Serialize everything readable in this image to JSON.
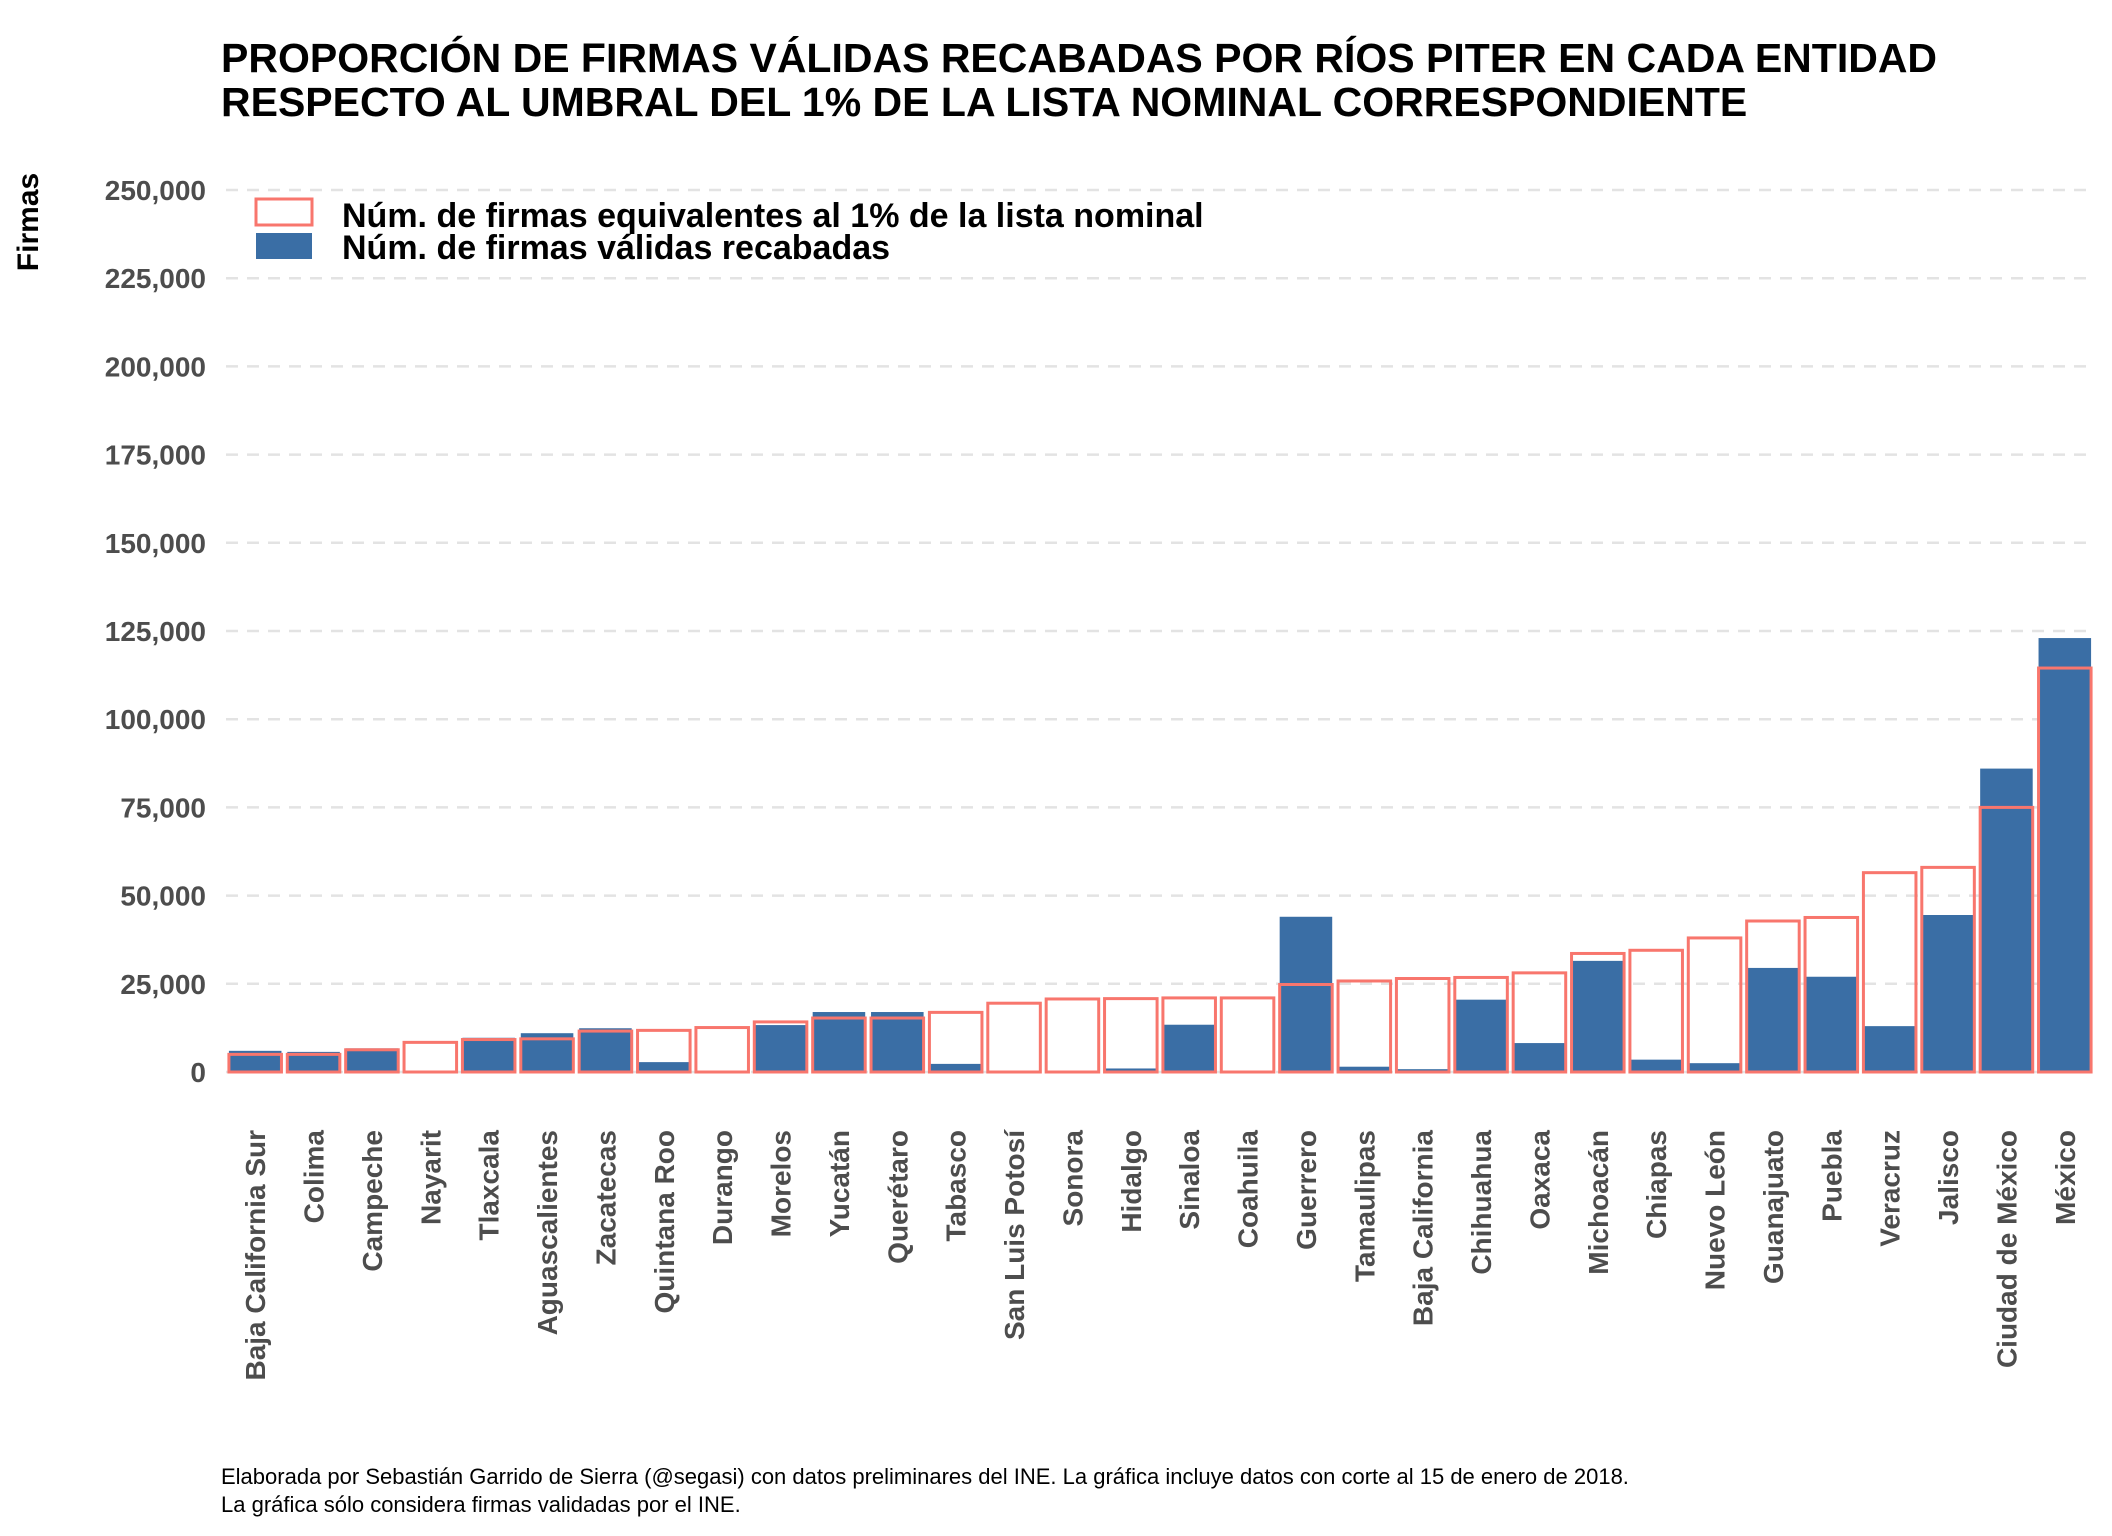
{
  "chart_data": {
    "type": "bar",
    "title": [
      "PROPORCIÓN DE FIRMAS VÁLIDAS RECABADAS POR RÍOS PITER EN CADA ENTIDAD",
      "RESPECTO AL UMBRAL DEL 1% DE LA LISTA NOMINAL CORRESPONDIENTE"
    ],
    "ylabel": "Firmas",
    "xlabel": "",
    "ylim": [
      0,
      250000
    ],
    "yticks": [
      0,
      25000,
      50000,
      75000,
      100000,
      125000,
      150000,
      175000,
      200000,
      225000,
      250000
    ],
    "ytick_labels": [
      "0",
      "25,000",
      "50,000",
      "75,000",
      "100,000",
      "125,000",
      "150,000",
      "175,000",
      "200,000",
      "225,000",
      "250,000"
    ],
    "grid": true,
    "legend_position": "top-left",
    "legend": [
      {
        "label": "Núm. de firmas equivalentes al 1% de la lista nominal",
        "style": "outline",
        "color": "#f8766d"
      },
      {
        "label": "Núm. de firmas válidas recabadas",
        "style": "filled",
        "color": "#3a6ea5"
      }
    ],
    "categories": [
      "Baja California Sur",
      "Colima",
      "Campeche",
      "Nayarit",
      "Tlaxcala",
      "Aguascalientes",
      "Zacatecas",
      "Quintana Roo",
      "Durango",
      "Morelos",
      "Yucatán",
      "Querétaro",
      "Tabasco",
      "San Luis Potosí",
      "Sonora",
      "Hidalgo",
      "Sinaloa",
      "Coahuila",
      "Guerrero",
      "Tamaulipas",
      "Baja California",
      "Chihuahua",
      "Oaxaca",
      "Michoacán",
      "Chiapas",
      "Nuevo León",
      "Guanajuato",
      "Puebla",
      "Veracruz",
      "Jalisco",
      "Ciudad de México",
      "México"
    ],
    "series": [
      {
        "name": "Núm. de firmas válidas recabadas",
        "color": "#3a6ea5",
        "values": [
          6000,
          5700,
          6700,
          0,
          9700,
          11000,
          12400,
          2800,
          0,
          13300,
          17000,
          17000,
          2300,
          0,
          300,
          1000,
          13400,
          0,
          44000,
          1500,
          800,
          20500,
          8200,
          31500,
          3500,
          2500,
          29500,
          27000,
          13000,
          44500,
          86000,
          123000
        ]
      },
      {
        "name": "Núm. de firmas equivalentes al 1% de la lista nominal",
        "color": "#f8766d",
        "values": [
          5000,
          5000,
          6300,
          8400,
          9200,
          9400,
          11600,
          11800,
          12600,
          14200,
          15300,
          15300,
          16900,
          19500,
          20700,
          20800,
          21000,
          21000,
          24800,
          25800,
          26500,
          26800,
          28100,
          33600,
          34500,
          38000,
          42800,
          43800,
          56500,
          58000,
          75000,
          114500
        ]
      }
    ]
  },
  "caption": [
    "Elaborada por Sebastián Garrido de Sierra (@segasi) con datos preliminares del INE. La gráfica incluye datos con corte al 15 de enero de 2018.",
    "La gráfica sólo considera firmas validadas por el INE."
  ]
}
